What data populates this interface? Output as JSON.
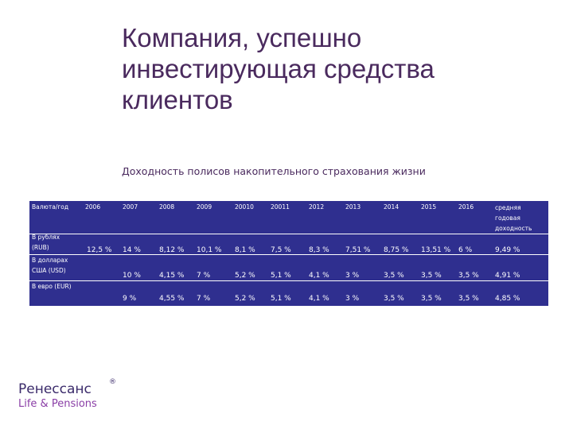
{
  "title": {
    "lines": [
      "Компания, успешно",
      "инвестирующая средства",
      "клиентов"
    ]
  },
  "subtitle": "Доходность полисов накопительного страхования жизни",
  "table": {
    "headers": [
      "Валюта/год",
      "2006",
      "2007",
      "2008",
      "2009",
      "20010",
      "20011",
      "2012",
      "2013",
      "2014",
      "2015",
      "2016"
    ],
    "avg_header_lines": [
      "средняя",
      "годовая",
      "доходность"
    ],
    "row_labels": [
      [
        "В рублях",
        "(RUB)"
      ],
      [
        "В долларах",
        "США (USD)"
      ],
      [
        "В евро (EUR)"
      ]
    ],
    "rows": [
      [
        "12,5 %",
        "14 %",
        "8,12 %",
        "10,1 %",
        "8,1 %",
        "7,5 %",
        "8,3 %",
        "7,51 %",
        "8,75 %",
        "13,51 %",
        "6 %",
        "9,49 %"
      ],
      [
        "",
        "10 %",
        "4,15 %",
        "7 %",
        "5,2 %",
        "5,1 %",
        "4,1 %",
        "3 %",
        "3,5 %",
        "3,5 %",
        "3,5 %",
        "4,91 %"
      ],
      [
        "",
        "9 %",
        "4,55 %",
        "7 %",
        "5,2 %",
        "5,1 %",
        "4,1 %",
        "3 %",
        "3,5 %",
        "3,5 %",
        "3,5 %",
        "4,85 %"
      ]
    ]
  },
  "logo": {
    "name": "Ренессанс",
    "mark": "®",
    "sub": "Life & Pensions"
  }
}
